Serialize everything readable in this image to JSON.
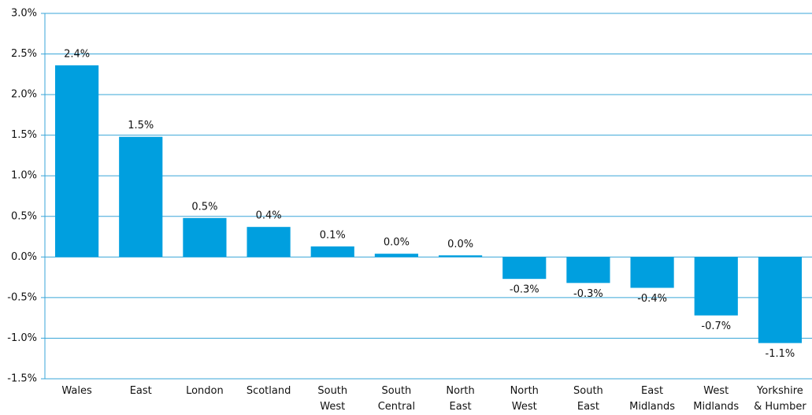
{
  "chart_data": {
    "type": "bar",
    "categories": [
      "Wales",
      "East",
      "London",
      "Scotland",
      "South\nWest",
      "South\nCentral",
      "North\nEast",
      "North\nWest",
      "South\nEast",
      "East\nMidlands",
      "West\nMidlands",
      "Yorkshire\n& Humber"
    ],
    "values": [
      2.36,
      1.48,
      0.48,
      0.37,
      0.13,
      0.04,
      0.02,
      -0.27,
      -0.32,
      -0.38,
      -0.72,
      -1.06
    ],
    "value_labels": [
      "2.4%",
      "1.5%",
      "0.5%",
      "0.4%",
      "0.1%",
      "0.0%",
      "0.0%",
      "-0.3%",
      "-0.3%",
      "-0.4%",
      "-0.7%",
      "-1.1%"
    ],
    "color": "#009fdf",
    "ylim": [
      -1.5,
      3.0
    ],
    "yticks": [
      {
        "value": -1.5,
        "label": "-1.5%"
      },
      {
        "value": -1.0,
        "label": "-1.0%"
      },
      {
        "value": -0.5,
        "label": "-0.5%"
      },
      {
        "value": 0,
        "label": "0.0%"
      },
      {
        "value": 0.5,
        "label": "0.5%"
      },
      {
        "value": 1.0,
        "label": "1.0%"
      },
      {
        "value": 1.5,
        "label": "1.5%"
      },
      {
        "value": 2.0,
        "label": "2.0%"
      },
      {
        "value": 2.5,
        "label": "2.5%"
      },
      {
        "value": 3.0,
        "label": "3.0%"
      }
    ],
    "grid": true
  }
}
